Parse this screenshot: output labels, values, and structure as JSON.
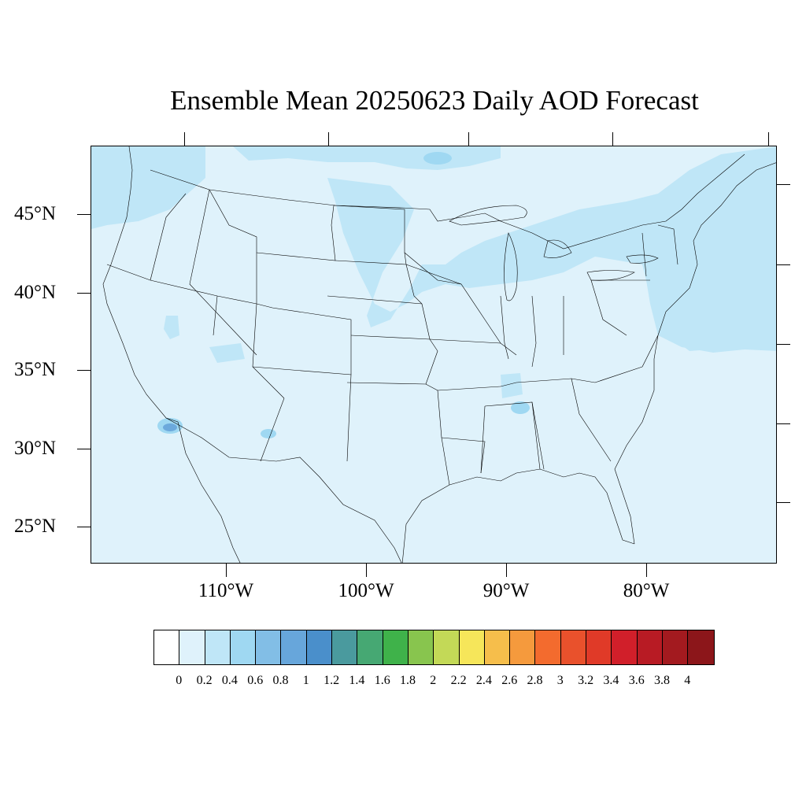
{
  "title": "Ensemble Mean 20250623 Daily AOD Forecast",
  "map": {
    "region": "Contiguous United States",
    "variable": "Daily AOD",
    "lat_labels": [
      "45°N",
      "40°N",
      "35°N",
      "30°N",
      "25°N"
    ],
    "lon_labels": [
      "110°W",
      "100°W",
      "90°W",
      "80°W"
    ],
    "background_level_color": "#dff2fb",
    "elevated_level_color": "#bfe6f7",
    "hotspot_color": "#6ca9dc"
  },
  "colorbar": {
    "labels": [
      "0",
      "0.2",
      "0.4",
      "0.6",
      "0.8",
      "1",
      "1.2",
      "1.4",
      "1.6",
      "1.8",
      "2",
      "2.2",
      "2.4",
      "2.6",
      "2.8",
      "3",
      "3.2",
      "3.4",
      "3.6",
      "3.8",
      "4"
    ],
    "colors": [
      "#ffffff",
      "#dff2fb",
      "#bfe6f7",
      "#9fd8f2",
      "#82bee6",
      "#67a6db",
      "#4a8fcb",
      "#4a9a9e",
      "#46a873",
      "#3fb24a",
      "#88c54e",
      "#c3d957",
      "#f6e65a",
      "#f6be4b",
      "#f59a3d",
      "#f36b2e",
      "#e9512c",
      "#e03a28",
      "#d11f2a",
      "#b81b24",
      "#a31a1f",
      "#8c161a"
    ]
  }
}
